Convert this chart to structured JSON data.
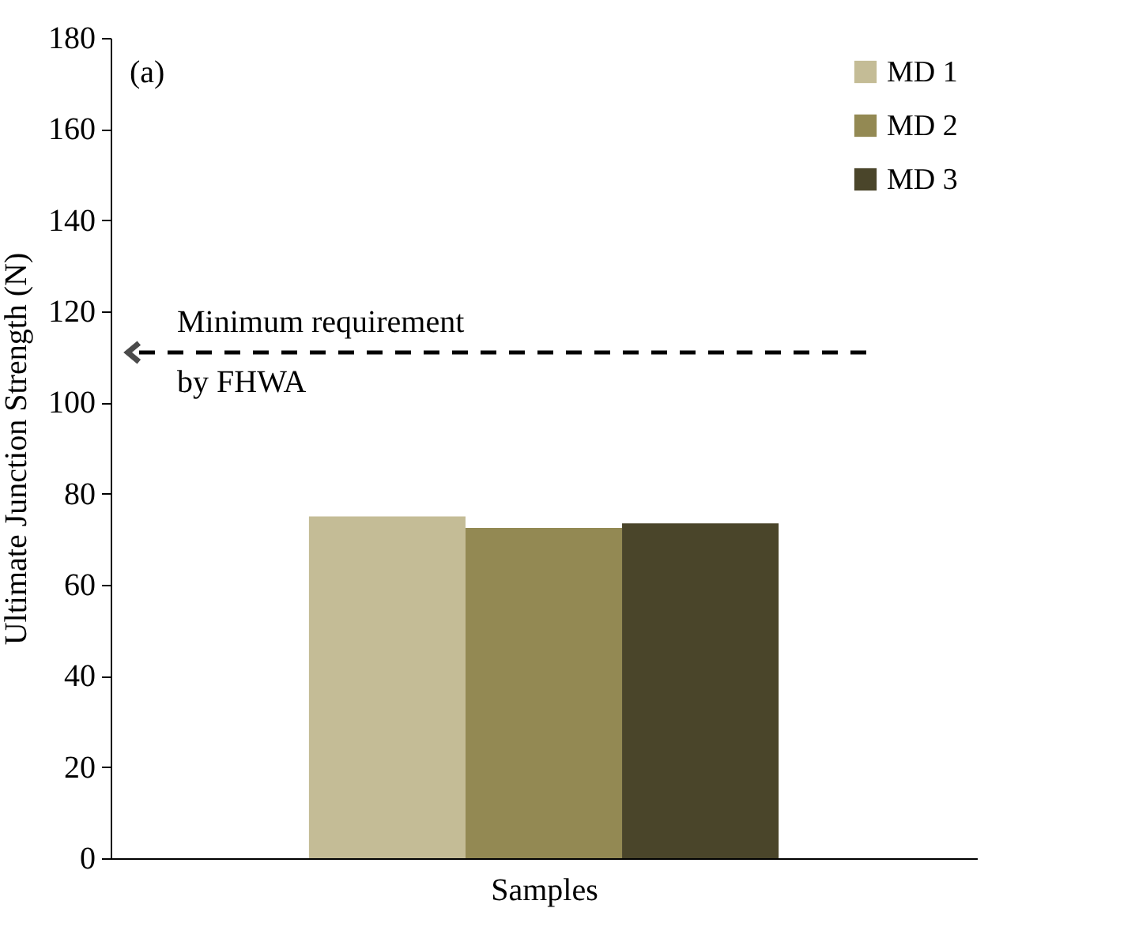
{
  "chart_data": {
    "type": "bar",
    "xlabel": "Samples",
    "ylabel": "Ultimate  Junction  Strength  (N)",
    "categories": [
      null
    ],
    "series": [
      {
        "name": "MD 1",
        "color": "#c4bc96",
        "values": [
          75
        ]
      },
      {
        "name": "MD 2",
        "color": "#938953",
        "values": [
          72.5
        ]
      },
      {
        "name": "MD 3",
        "color": "#4a452a",
        "values": [
          73.5
        ]
      }
    ],
    "ylim": [
      0,
      180
    ],
    "yticks": [
      0,
      20,
      40,
      60,
      80,
      100,
      120,
      140,
      160,
      180
    ],
    "ref_lines": [
      {
        "axis": "y",
        "value": 111,
        "label": "Minimum  requirement\nby FHWA",
        "color": "#000000",
        "line_style": "dashed"
      }
    ],
    "annotations": [
      "(a)"
    ],
    "legend": "top right"
  }
}
